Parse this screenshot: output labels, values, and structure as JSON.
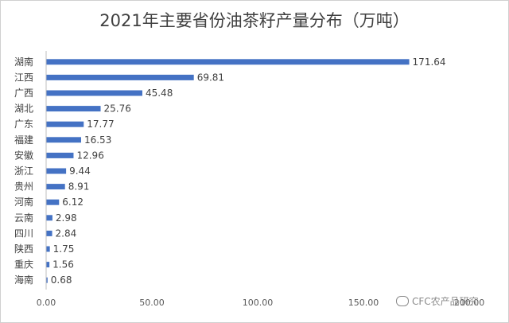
{
  "chart_data": {
    "type": "bar",
    "orientation": "horizontal",
    "title": "2021年主要省份油茶籽产量分布（万吨）",
    "categories": [
      "湖南",
      "江西",
      "广西",
      "湖北",
      "广东",
      "福建",
      "安徽",
      "浙江",
      "贵州",
      "河南",
      "云南",
      "四川",
      "陕西",
      "重庆",
      "海南"
    ],
    "values": [
      171.64,
      69.81,
      45.48,
      25.76,
      17.77,
      16.53,
      12.96,
      9.44,
      8.91,
      6.12,
      2.98,
      2.84,
      1.75,
      1.56,
      0.68
    ],
    "value_labels": [
      "171.64",
      "69.81",
      "45.48",
      "25.76",
      "17.77",
      "16.53",
      "12.96",
      "9.44",
      "8.91",
      "6.12",
      "2.98",
      "2.84",
      "1.75",
      "1.56",
      "0.68"
    ],
    "xlim": [
      0,
      200
    ],
    "x_ticks": [
      0,
      50,
      100,
      150,
      200
    ],
    "x_tick_labels": [
      "0.00",
      "50.00",
      "100.00",
      "150.00",
      "200.00"
    ],
    "bar_color": "#4472c4",
    "grid": false
  },
  "watermark": {
    "text": "CFC农产品研究",
    "icon": "wechat-icon"
  }
}
